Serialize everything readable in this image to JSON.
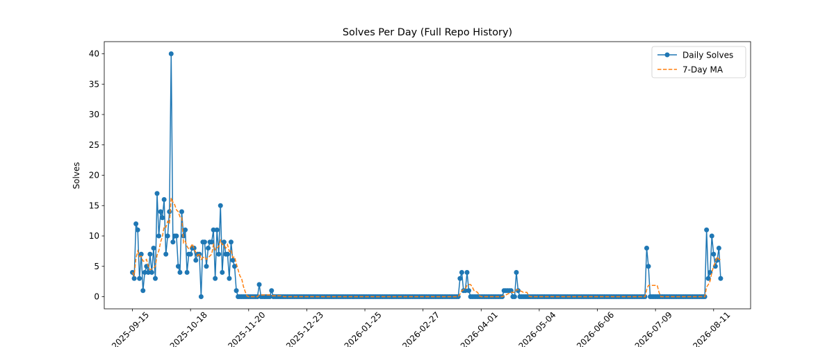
{
  "chart_data": {
    "type": "line",
    "title": "Solves Per Day (Full Repo History)",
    "ylabel": "Solves",
    "legend": "upper right",
    "xlim": [
      "2025-08-30",
      "2026-09-01"
    ],
    "xticks": [
      "2025-09-15",
      "2025-10-18",
      "2025-11-20",
      "2025-12-23",
      "2026-01-25",
      "2026-02-27",
      "2026-04-01",
      "2026-05-04",
      "2026-06-06",
      "2026-07-09",
      "2026-08-11"
    ],
    "ylim": [
      -2,
      42
    ],
    "yticks": [
      0,
      5,
      10,
      15,
      20,
      25,
      30,
      35,
      40
    ],
    "x": [
      "2025-09-15",
      "2025-09-16",
      "2025-09-17",
      "2025-09-18",
      "2025-09-19",
      "2025-09-20",
      "2025-09-21",
      "2025-09-22",
      "2025-09-23",
      "2025-09-24",
      "2025-09-25",
      "2025-09-26",
      "2025-09-27",
      "2025-09-28",
      "2025-09-29",
      "2025-09-30",
      "2025-10-01",
      "2025-10-02",
      "2025-10-03",
      "2025-10-04",
      "2025-10-05",
      "2025-10-06",
      "2025-10-07",
      "2025-10-08",
      "2025-10-09",
      "2025-10-10",
      "2025-10-11",
      "2025-10-12",
      "2025-10-13",
      "2025-10-14",
      "2025-10-15",
      "2025-10-16",
      "2025-10-17",
      "2025-10-18",
      "2025-10-19",
      "2025-10-20",
      "2025-10-21",
      "2025-10-22",
      "2025-10-23",
      "2025-10-24",
      "2025-10-25",
      "2025-10-26",
      "2025-10-27",
      "2025-10-28",
      "2025-10-29",
      "2025-10-30",
      "2025-10-31",
      "2025-11-01",
      "2025-11-02",
      "2025-11-03",
      "2025-11-04",
      "2025-11-05",
      "2025-11-06",
      "2025-11-07",
      "2025-11-08",
      "2025-11-09",
      "2025-11-10",
      "2025-11-11",
      "2025-11-12",
      "2025-11-13",
      "2025-11-14",
      "2025-11-15",
      "2025-11-16",
      "2025-11-17",
      "2025-11-18",
      "2025-11-19",
      "2025-11-20",
      "2025-11-21",
      "2025-11-22",
      "2025-11-23",
      "2025-11-24",
      "2025-11-25",
      "2025-11-26",
      "2025-11-27",
      "2025-11-28",
      "2025-11-29",
      "2025-11-30",
      "2025-12-01",
      "2025-12-02",
      "2025-12-03",
      "2025-12-04",
      "2025-12-05",
      "2025-12-06",
      "2025-12-07",
      "2025-12-08",
      "2025-12-09",
      "2025-12-10",
      "2025-12-11",
      "2025-12-12",
      "2025-12-13",
      "2025-12-14",
      "2025-12-15",
      "2025-12-16",
      "2025-12-17",
      "2025-12-18",
      "2025-12-19",
      "2025-12-20",
      "2025-12-21",
      "2025-12-22",
      "2025-12-23",
      "2025-12-24",
      "2025-12-25",
      "2025-12-26",
      "2025-12-27",
      "2025-12-28",
      "2025-12-29",
      "2025-12-30",
      "2025-12-31",
      "2026-01-01",
      "2026-01-02",
      "2026-01-03",
      "2026-01-04",
      "2026-01-05",
      "2026-01-06",
      "2026-01-07",
      "2026-01-08",
      "2026-01-09",
      "2026-01-10",
      "2026-01-11",
      "2026-01-12",
      "2026-01-13",
      "2026-01-14",
      "2026-01-15",
      "2026-01-16",
      "2026-01-17",
      "2026-01-18",
      "2026-01-19",
      "2026-01-20",
      "2026-01-21",
      "2026-01-22",
      "2026-01-23",
      "2026-01-24",
      "2026-01-25",
      "2026-01-26",
      "2026-01-27",
      "2026-01-28",
      "2026-01-29",
      "2026-01-30",
      "2026-01-31",
      "2026-02-01",
      "2026-02-02",
      "2026-02-03",
      "2026-02-04",
      "2026-02-05",
      "2026-02-06",
      "2026-02-07",
      "2026-02-08",
      "2026-02-09",
      "2026-02-10",
      "2026-02-11",
      "2026-02-12",
      "2026-02-13",
      "2026-02-14",
      "2026-02-15",
      "2026-02-16",
      "2026-02-17",
      "2026-02-18",
      "2026-02-19",
      "2026-02-20",
      "2026-02-21",
      "2026-02-22",
      "2026-02-23",
      "2026-02-24",
      "2026-02-25",
      "2026-02-26",
      "2026-02-27",
      "2026-02-28",
      "2026-03-01",
      "2026-03-02",
      "2026-03-03",
      "2026-03-04",
      "2026-03-05",
      "2026-03-06",
      "2026-03-07",
      "2026-03-08",
      "2026-03-09",
      "2026-03-10",
      "2026-03-11",
      "2026-03-12",
      "2026-03-13",
      "2026-03-14",
      "2026-03-15",
      "2026-03-16",
      "2026-03-17",
      "2026-03-18",
      "2026-03-19",
      "2026-03-20",
      "2026-03-21",
      "2026-03-22",
      "2026-03-23",
      "2026-03-24",
      "2026-03-25",
      "2026-03-26",
      "2026-03-27",
      "2026-03-28",
      "2026-03-29",
      "2026-03-30",
      "2026-03-31",
      "2026-04-01",
      "2026-04-02",
      "2026-04-03",
      "2026-04-04",
      "2026-04-05",
      "2026-04-06",
      "2026-04-07",
      "2026-04-08",
      "2026-04-09",
      "2026-04-10",
      "2026-04-11",
      "2026-04-12",
      "2026-04-13",
      "2026-04-14",
      "2026-04-15",
      "2026-04-16",
      "2026-04-17",
      "2026-04-18",
      "2026-04-19",
      "2026-04-20",
      "2026-04-21",
      "2026-04-22",
      "2026-04-23",
      "2026-04-24",
      "2026-04-25",
      "2026-04-26",
      "2026-04-27",
      "2026-04-28",
      "2026-04-29",
      "2026-04-30",
      "2026-05-01",
      "2026-05-02",
      "2026-05-03",
      "2026-05-04",
      "2026-05-05",
      "2026-05-06",
      "2026-05-07",
      "2026-05-08",
      "2026-05-09",
      "2026-05-10",
      "2026-05-11",
      "2026-05-12",
      "2026-05-13",
      "2026-05-14",
      "2026-05-15",
      "2026-05-16",
      "2026-05-17",
      "2026-05-18",
      "2026-05-19",
      "2026-05-20",
      "2026-05-21",
      "2026-05-22",
      "2026-05-23",
      "2026-05-24",
      "2026-05-25",
      "2026-05-26",
      "2026-05-27",
      "2026-05-28",
      "2026-05-29",
      "2026-05-30",
      "2026-05-31",
      "2026-06-01",
      "2026-06-02",
      "2026-06-03",
      "2026-06-04",
      "2026-06-05",
      "2026-06-06",
      "2026-06-07",
      "2026-06-08",
      "2026-06-09",
      "2026-06-10",
      "2026-06-11",
      "2026-06-12",
      "2026-06-13",
      "2026-06-14",
      "2026-06-15",
      "2026-06-16",
      "2026-06-17",
      "2026-06-18",
      "2026-06-19",
      "2026-06-20",
      "2026-06-21",
      "2026-06-22",
      "2026-06-23",
      "2026-06-24",
      "2026-06-25",
      "2026-06-26",
      "2026-06-27",
      "2026-06-28",
      "2026-06-29",
      "2026-06-30",
      "2026-07-01",
      "2026-07-02",
      "2026-07-03",
      "2026-07-04",
      "2026-07-05",
      "2026-07-06",
      "2026-07-07",
      "2026-07-08",
      "2026-07-09",
      "2026-07-10",
      "2026-07-11",
      "2026-07-12",
      "2026-07-13",
      "2026-07-14",
      "2026-07-15",
      "2026-07-16",
      "2026-07-17",
      "2026-07-18",
      "2026-07-19",
      "2026-07-20",
      "2026-07-21",
      "2026-07-22",
      "2026-07-23",
      "2026-07-24",
      "2026-07-25",
      "2026-07-26",
      "2026-07-27",
      "2026-07-28",
      "2026-07-29",
      "2026-07-30",
      "2026-07-31",
      "2026-08-01",
      "2026-08-02",
      "2026-08-03",
      "2026-08-04",
      "2026-08-05",
      "2026-08-06",
      "2026-08-07",
      "2026-08-08",
      "2026-08-09",
      "2026-08-10",
      "2026-08-11",
      "2026-08-12",
      "2026-08-13",
      "2026-08-14",
      "2026-08-15"
    ],
    "series": [
      {
        "name": "Daily Solves",
        "color": "#1f77b4",
        "style": "solid",
        "marker": true,
        "values": [
          4,
          3,
          12,
          11,
          3,
          7,
          1,
          4,
          5,
          4,
          7,
          4,
          8,
          3,
          17,
          10,
          14,
          13,
          16,
          7,
          10,
          14,
          40,
          9,
          10,
          10,
          5,
          4,
          14,
          10,
          11,
          4,
          7,
          7,
          8,
          8,
          6,
          7,
          7,
          0,
          9,
          9,
          5,
          8,
          9,
          9,
          11,
          3,
          11,
          7,
          15,
          4,
          9,
          7,
          7,
          3,
          9,
          6,
          5,
          1,
          0,
          0,
          0,
          0,
          0,
          0,
          0,
          0,
          0,
          0,
          0,
          0,
          2,
          0,
          0,
          0,
          0,
          0,
          0,
          1,
          0,
          0,
          0,
          0,
          0,
          0,
          0,
          0,
          0,
          0,
          0,
          0,
          0,
          0,
          0,
          0,
          0,
          0,
          0,
          0,
          0,
          0,
          0,
          0,
          0,
          0,
          0,
          0,
          0,
          0,
          0,
          0,
          0,
          0,
          0,
          0,
          0,
          0,
          0,
          0,
          0,
          0,
          0,
          0,
          0,
          0,
          0,
          0,
          0,
          0,
          0,
          0,
          0,
          0,
          0,
          0,
          0,
          0,
          0,
          0,
          0,
          0,
          0,
          0,
          0,
          0,
          0,
          0,
          0,
          0,
          0,
          0,
          0,
          0,
          0,
          0,
          0,
          0,
          0,
          0,
          0,
          0,
          0,
          0,
          0,
          0,
          0,
          0,
          0,
          0,
          0,
          0,
          0,
          0,
          0,
          0,
          0,
          0,
          0,
          0,
          0,
          0,
          0,
          0,
          0,
          0,
          3,
          4,
          1,
          1,
          4,
          1,
          0,
          0,
          0,
          0,
          0,
          0,
          0,
          0,
          0,
          0,
          0,
          0,
          0,
          0,
          0,
          0,
          0,
          0,
          0,
          1,
          1,
          1,
          1,
          1,
          0,
          0,
          4,
          1,
          0,
          0,
          0,
          0,
          0,
          0,
          0,
          0,
          0,
          0,
          0,
          0,
          0,
          0,
          0,
          0,
          0,
          0,
          0,
          0,
          0,
          0,
          0,
          0,
          0,
          0,
          0,
          0,
          0,
          0,
          0,
          0,
          0,
          0,
          0,
          0,
          0,
          0,
          0,
          0,
          0,
          0,
          0,
          0,
          0,
          0,
          0,
          0,
          0,
          0,
          0,
          0,
          0,
          0,
          0,
          0,
          0,
          0,
          0,
          0,
          0,
          0,
          0,
          0,
          0,
          0,
          0,
          0,
          0,
          0,
          0,
          0,
          8,
          5,
          0,
          0,
          0,
          0,
          0,
          0,
          0,
          0,
          0,
          0,
          0,
          0,
          0,
          0,
          0,
          0,
          0,
          0,
          0,
          0,
          0,
          0,
          0,
          0,
          0,
          0,
          0,
          0,
          0,
          0,
          0,
          0,
          11,
          3,
          4,
          10,
          7,
          5,
          6,
          8,
          3
        ]
      },
      {
        "name": "7-Day MA",
        "color": "#ff7f0e",
        "style": "dashed",
        "marker": false,
        "values": [
          4,
          3.5,
          6.33,
          7.5,
          6.6,
          6.67,
          5.86,
          5.86,
          6.14,
          5,
          4.43,
          4.57,
          4.71,
          5,
          6.86,
          7.57,
          9,
          9.86,
          11.57,
          11.43,
          12.43,
          12,
          16.29,
          15.57,
          15.14,
          14.29,
          14,
          13.14,
          13.14,
          8.86,
          9.14,
          8.29,
          7.86,
          8.14,
          8.71,
          7.86,
          7.29,
          6.71,
          7.14,
          6.14,
          6.43,
          6.57,
          6.14,
          6.43,
          6.71,
          7,
          8.57,
          7.71,
          8,
          8.29,
          9.29,
          8.57,
          8.57,
          8,
          8.57,
          7.43,
          7.71,
          6.43,
          6.57,
          5.43,
          4.43,
          3.43,
          3,
          1.71,
          0.86,
          0.14,
          0,
          0,
          0,
          0,
          0,
          0,
          0.29,
          0.29,
          0.29,
          0.29,
          0.29,
          0.29,
          0.29,
          0.14,
          0.14,
          0.14,
          0.14,
          0.14,
          0.14,
          0.14,
          0,
          0,
          0,
          0,
          0,
          0,
          0,
          0,
          0,
          0,
          0,
          0,
          0,
          0,
          0,
          0,
          0,
          0,
          0,
          0,
          0,
          0,
          0,
          0,
          0,
          0,
          0,
          0,
          0,
          0,
          0,
          0,
          0,
          0,
          0,
          0,
          0,
          0,
          0,
          0,
          0,
          0,
          0,
          0,
          0,
          0,
          0,
          0,
          0,
          0,
          0,
          0,
          0,
          0,
          0,
          0,
          0,
          0,
          0,
          0,
          0,
          0,
          0,
          0,
          0,
          0,
          0,
          0,
          0,
          0,
          0,
          0,
          0,
          0,
          0,
          0,
          0,
          0,
          0,
          0,
          0,
          0,
          0,
          0,
          0,
          0,
          0,
          0,
          0,
          0,
          0,
          0,
          0,
          0,
          0,
          0,
          0,
          0,
          0,
          0,
          0.43,
          1,
          1.14,
          1.29,
          1.86,
          2,
          2,
          1.57,
          1,
          0.86,
          0.71,
          0.14,
          0,
          0,
          0,
          0,
          0,
          0,
          0,
          0,
          0,
          0,
          0,
          0,
          0,
          0.14,
          0.29,
          0.43,
          0.57,
          0.71,
          0.71,
          0.71,
          1.14,
          1.14,
          1,
          0.86,
          0.71,
          0.71,
          0.71,
          0.14,
          0,
          0,
          0,
          0,
          0,
          0,
          0,
          0,
          0,
          0,
          0,
          0,
          0,
          0,
          0,
          0,
          0,
          0,
          0,
          0,
          0,
          0,
          0,
          0,
          0,
          0,
          0,
          0,
          0,
          0,
          0,
          0,
          0,
          0,
          0,
          0,
          0,
          0,
          0,
          0,
          0,
          0,
          0,
          0,
          0,
          0,
          0,
          0,
          0,
          0,
          0,
          0,
          0,
          0,
          0,
          0,
          0,
          0,
          0,
          0,
          0,
          0,
          0,
          0,
          0,
          0,
          1.14,
          1.86,
          1.86,
          1.86,
          1.86,
          1.86,
          1.86,
          0.71,
          0,
          0,
          0,
          0,
          0,
          0,
          0,
          0,
          0,
          0,
          0,
          0,
          0,
          0,
          0,
          0,
          0,
          0,
          0,
          0,
          0,
          0,
          0,
          0,
          0,
          0,
          1.57,
          2,
          2.57,
          4,
          5,
          5.71,
          6.57,
          6.14,
          6.14
        ]
      }
    ]
  }
}
